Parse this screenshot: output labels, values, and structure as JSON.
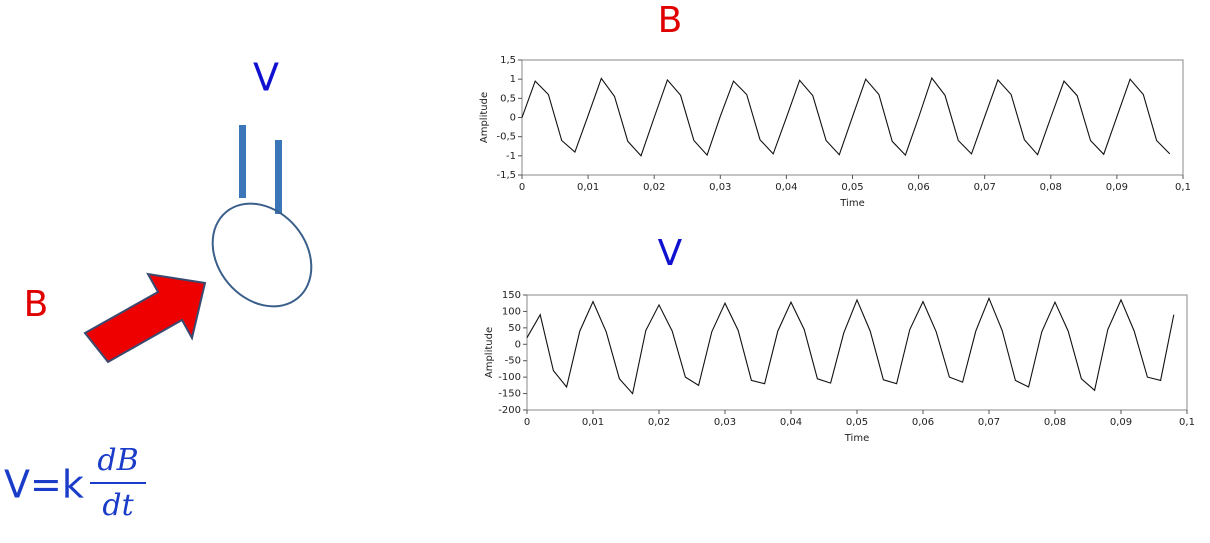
{
  "diagram": {
    "coil_label": "V",
    "field_label": "B",
    "formula": {
      "lhs": "V=k",
      "numerator": "dB",
      "denominator": "dt"
    }
  },
  "chart_data": [
    {
      "type": "line",
      "title": "B",
      "title_color": "#e00000",
      "x_label": "Time",
      "y_label": "Amplitude",
      "color": "#111111",
      "x": [
        0,
        0.002,
        0.004,
        0.006,
        0.008,
        0.01,
        0.012,
        0.014,
        0.016,
        0.018,
        0.02,
        0.022,
        0.024,
        0.026,
        0.028,
        0.03,
        0.032,
        0.034,
        0.036,
        0.038,
        0.04,
        0.042,
        0.044,
        0.046,
        0.048,
        0.05,
        0.052,
        0.054,
        0.056,
        0.058,
        0.06,
        0.062,
        0.064,
        0.066,
        0.068,
        0.07,
        0.072,
        0.074,
        0.076,
        0.078,
        0.08,
        0.082,
        0.084,
        0.086,
        0.088,
        0.09,
        0.092,
        0.094,
        0.096,
        0.098
      ],
      "values": [
        0,
        0.95,
        0.6,
        -0.6,
        -0.9,
        0.05,
        1.02,
        0.55,
        -0.62,
        -1.0,
        0,
        0.98,
        0.58,
        -0.6,
        -0.98,
        0.03,
        0.95,
        0.6,
        -0.58,
        -0.95,
        0,
        0.97,
        0.57,
        -0.6,
        -0.97,
        0.02,
        1.0,
        0.6,
        -0.62,
        -0.98,
        0,
        1.03,
        0.58,
        -0.6,
        -0.95,
        0.02,
        0.98,
        0.6,
        -0.58,
        -0.97,
        0,
        0.95,
        0.57,
        -0.6,
        -0.96,
        0.02,
        1.0,
        0.6,
        -0.6,
        -0.95
      ],
      "xlim": [
        0,
        0.1
      ],
      "xticks": [
        0,
        {
          "value": 0.01,
          "label": "0,01"
        },
        {
          "value": 0.02,
          "label": "0,02"
        },
        {
          "value": 0.03,
          "label": "0,03"
        },
        {
          "value": 0.04,
          "label": "0,04"
        },
        {
          "value": 0.05,
          "label": "0,05"
        },
        {
          "value": 0.06,
          "label": "0,06"
        },
        {
          "value": 0.07,
          "label": "0,07"
        },
        {
          "value": 0.08,
          "label": "0,08"
        },
        {
          "value": 0.09,
          "label": "0,09"
        },
        {
          "value": 0.1,
          "label": "0,1"
        }
      ],
      "ylim": [
        -1.5,
        1.5
      ],
      "yticks": [
        {
          "value": 1.5,
          "label": "1,5"
        },
        1,
        {
          "value": 0.5,
          "label": "0,5"
        },
        0,
        {
          "value": -0.5,
          "label": "-0,5"
        },
        -1,
        {
          "value": -1.5,
          "label": "-1,5"
        }
      ]
    },
    {
      "type": "line",
      "title": "V",
      "title_color": "#1010d0",
      "x_label": "Time",
      "y_label": "Amplitude",
      "color": "#111111",
      "x": [
        0,
        0.002,
        0.004,
        0.006,
        0.008,
        0.01,
        0.012,
        0.014,
        0.016,
        0.018,
        0.02,
        0.022,
        0.024,
        0.026,
        0.028,
        0.03,
        0.032,
        0.034,
        0.036,
        0.038,
        0.04,
        0.042,
        0.044,
        0.046,
        0.048,
        0.05,
        0.052,
        0.054,
        0.056,
        0.058,
        0.06,
        0.062,
        0.064,
        0.066,
        0.068,
        0.07,
        0.072,
        0.074,
        0.076,
        0.078,
        0.08,
        0.082,
        0.084,
        0.086,
        0.088,
        0.09,
        0.092,
        0.094,
        0.096,
        0.098
      ],
      "values": [
        20,
        90,
        -80,
        -130,
        40,
        130,
        38,
        -105,
        -150,
        42,
        120,
        40,
        -100,
        -125,
        38,
        125,
        42,
        -110,
        -120,
        40,
        128,
        45,
        -105,
        -118,
        35,
        135,
        40,
        -108,
        -120,
        45,
        130,
        38,
        -100,
        -115,
        40,
        140,
        42,
        -110,
        -130,
        38,
        128,
        40,
        -105,
        -140,
        45,
        135,
        40,
        -100,
        -110,
        90
      ],
      "xlim": [
        0,
        0.1
      ],
      "xticks": [
        0,
        {
          "value": 0.01,
          "label": "0,01"
        },
        {
          "value": 0.02,
          "label": "0,02"
        },
        {
          "value": 0.03,
          "label": "0,03"
        },
        {
          "value": 0.04,
          "label": "0,04"
        },
        {
          "value": 0.05,
          "label": "0,05"
        },
        {
          "value": 0.06,
          "label": "0,06"
        },
        {
          "value": 0.07,
          "label": "0,07"
        },
        {
          "value": 0.08,
          "label": "0,08"
        },
        {
          "value": 0.09,
          "label": "0,09"
        },
        {
          "value": 0.1,
          "label": "0,1"
        }
      ],
      "ylim": [
        -200,
        150
      ],
      "yticks": [
        150,
        100,
        50,
        0,
        -50,
        -100,
        -150,
        -200
      ]
    }
  ]
}
